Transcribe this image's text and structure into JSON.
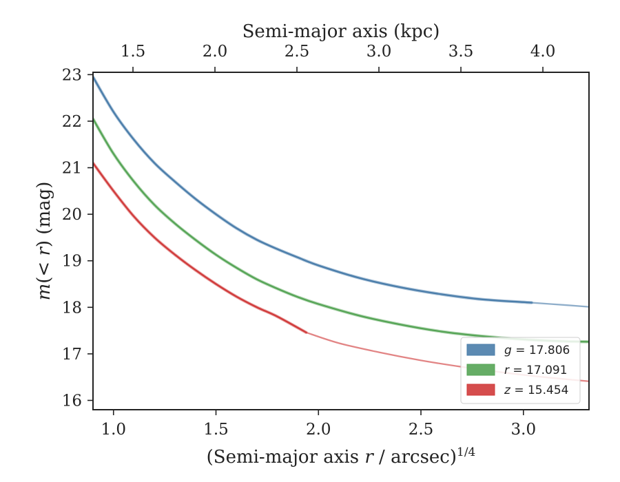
{
  "chart_data": {
    "type": "line",
    "xlabel": {
      "prefix": "(Semi-major axis ",
      "var": "r",
      "suffix": " / arcsec)",
      "sup": "1/4"
    },
    "ylabel": {
      "var": "m",
      "open": "(",
      "lt": "< ",
      "r": "r",
      "close": ")",
      "unit": " (mag)"
    },
    "top_xlabel": "Semi-major axis (kpc)",
    "xlim": [
      0.9,
      3.32
    ],
    "ylim": [
      23.05,
      15.8
    ],
    "x_ticks": [
      "1.0",
      "1.5",
      "2.0",
      "2.5",
      "3.0"
    ],
    "y_ticks": [
      "16",
      "17",
      "18",
      "19",
      "20",
      "21",
      "22",
      "23"
    ],
    "top_ticks": [
      "1.5",
      "2.0",
      "2.5",
      "3.0",
      "3.5",
      "4.0"
    ],
    "top_tick_x_positions": [
      1.095,
      1.495,
      1.895,
      2.295,
      2.695,
      3.095
    ],
    "legend": {
      "placement": "lower-right"
    },
    "series": [
      {
        "name": "g",
        "label_var": "g",
        "label_value": " = 17.806",
        "color": "#4a7daa",
        "solid": {
          "x": [
            0.9,
            1.0,
            1.1,
            1.2,
            1.3,
            1.4,
            1.5,
            1.6,
            1.7,
            1.8,
            1.9,
            2.0,
            2.2,
            2.4,
            2.6,
            2.8,
            3.04
          ],
          "y": [
            22.95,
            22.2,
            21.6,
            21.1,
            20.7,
            20.33,
            20.0,
            19.7,
            19.45,
            19.25,
            19.07,
            18.9,
            18.63,
            18.43,
            18.28,
            18.17,
            18.1
          ]
        },
        "ext": {
          "x": [
            3.04,
            3.2,
            3.32
          ],
          "y": [
            18.1,
            18.05,
            18.01
          ]
        }
      },
      {
        "name": "r",
        "label_var": "r",
        "label_value": " = 17.091",
        "color": "#55a455",
        "solid": {
          "x": [
            0.9,
            1.0,
            1.1,
            1.2,
            1.3,
            1.4,
            1.5,
            1.6,
            1.7,
            1.8,
            1.9,
            2.0,
            2.2,
            2.4,
            2.6,
            2.8,
            3.0,
            3.2,
            3.32
          ],
          "y": [
            22.05,
            21.3,
            20.7,
            20.2,
            19.8,
            19.45,
            19.13,
            18.85,
            18.6,
            18.4,
            18.22,
            18.07,
            17.82,
            17.63,
            17.48,
            17.38,
            17.31,
            17.27,
            17.26
          ]
        },
        "ext": null
      },
      {
        "name": "z",
        "label_var": "z",
        "label_value": " = 15.454",
        "color": "#d03a3a",
        "solid": {
          "x": [
            0.9,
            1.0,
            1.1,
            1.2,
            1.3,
            1.4,
            1.5,
            1.6,
            1.7,
            1.8,
            1.94
          ],
          "y": [
            21.1,
            20.5,
            19.95,
            19.5,
            19.13,
            18.8,
            18.5,
            18.23,
            18.0,
            17.8,
            17.46
          ]
        },
        "ext": {
          "x": [
            1.94,
            2.1,
            2.3,
            2.5,
            2.7,
            2.9,
            3.1,
            3.32
          ],
          "y": [
            17.46,
            17.23,
            17.03,
            16.86,
            16.72,
            16.6,
            16.5,
            16.41
          ]
        }
      }
    ]
  }
}
